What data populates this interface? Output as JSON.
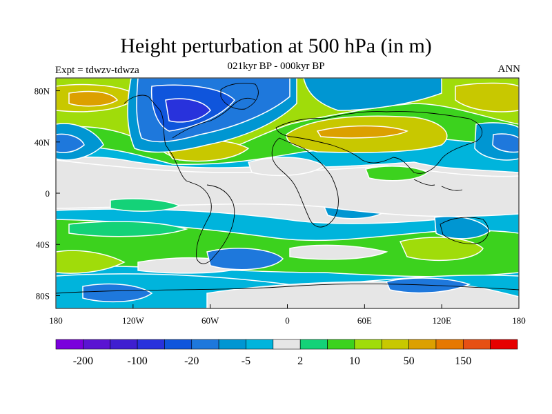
{
  "title": "Height perturbation at 500 hPa (in m)",
  "subtitle": "021kyr BP - 000kyr BP",
  "left_label": "Expt = tdwzv-tdwza",
  "right_label": "ANN",
  "map": {
    "lon_ticks": [
      {
        "lon": -180,
        "label": "180"
      },
      {
        "lon": -120,
        "label": "120W"
      },
      {
        "lon": -60,
        "label": "60W"
      },
      {
        "lon": 0,
        "label": "0"
      },
      {
        "lon": 60,
        "label": "60E"
      },
      {
        "lon": 120,
        "label": "120E"
      },
      {
        "lon": 180,
        "label": "180"
      }
    ],
    "lat_ticks": [
      {
        "lat": 80,
        "label": "80N"
      },
      {
        "lat": 40,
        "label": "40N"
      },
      {
        "lat": 0,
        "label": "0"
      },
      {
        "lat": -40,
        "label": "40S"
      },
      {
        "lat": -80,
        "label": "80S"
      }
    ],
    "lat_range": [
      -90,
      90
    ],
    "lon_range": [
      -180,
      180
    ]
  },
  "colorbar": {
    "colors": [
      "#7a00dc",
      "#5a14d2",
      "#3f1fd0",
      "#2832dc",
      "#0f55dc",
      "#1e78dc",
      "#0096d2",
      "#00b4dc",
      "#e6e6e6",
      "#14d278",
      "#3cd21e",
      "#a0dc0a",
      "#c8c800",
      "#dca000",
      "#e67800",
      "#e65014",
      "#e60000"
    ],
    "labels": [
      {
        "boundary": 1,
        "text": "-200"
      },
      {
        "boundary": 3,
        "text": "-100"
      },
      {
        "boundary": 5,
        "text": "-20"
      },
      {
        "boundary": 7,
        "text": "-5"
      },
      {
        "boundary": 9,
        "text": "2"
      },
      {
        "boundary": 11,
        "text": "10"
      },
      {
        "boundary": 13,
        "text": "50"
      },
      {
        "boundary": 15,
        "text": "150"
      }
    ]
  },
  "field_colors": {
    "neutral": "#e6e6e6",
    "blue_dark": "#2832dc",
    "blue_mid": "#0f55dc",
    "blue": "#1e78dc",
    "blue_light": "#0096d2",
    "cyan": "#00b4dc",
    "green_light": "#14d278",
    "green": "#3cd21e",
    "lime": "#a0dc0a",
    "yellow": "#c8c800",
    "orange": "#dca000",
    "orange_dark": "#e67800"
  }
}
